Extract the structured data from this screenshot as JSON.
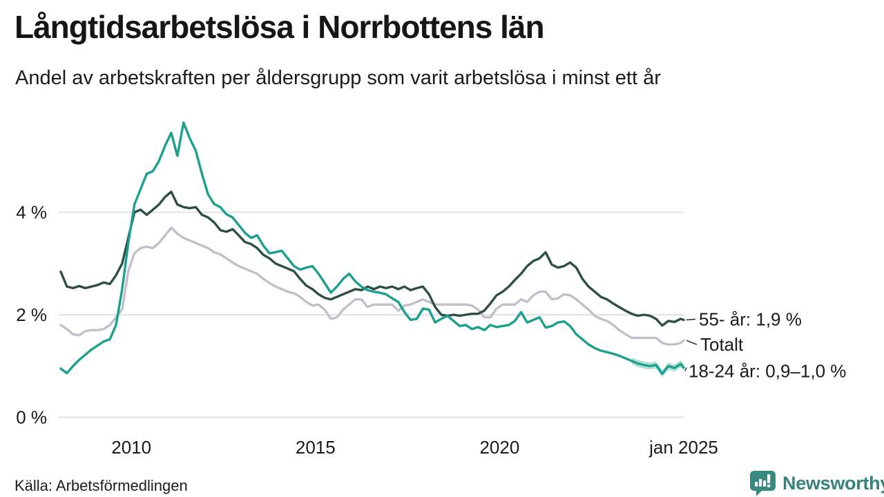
{
  "header": {
    "title": "Långtidsarbetslösa i Norrbottens län",
    "subtitle": "Andel av arbetskraften per åldersgrupp som varit arbetslösa i minst ett år"
  },
  "footer": {
    "source": "Källa: Arbetsförmedlingen",
    "brand": "Newsworthy"
  },
  "colors": {
    "background": "#ffffff",
    "text": "#1a1a1a",
    "grid": "#e2e0e5",
    "leader": "#3a3a3a",
    "brand": "#35837a",
    "band_opacity": 0.32
  },
  "chart_data": {
    "type": "line",
    "title": "Långtidsarbetslösa i Norrbottens län",
    "subtitle": "Andel av arbetskraften per åldersgrupp som varit arbetslösa i minst ett år",
    "x_unit": "month (every 2nd month sampled)",
    "x_range": [
      "2008-02",
      "2025-01"
    ],
    "ylim": [
      0,
      6
    ],
    "grid": "horizontal",
    "legend_position": "right-annotations",
    "y_ticks": [
      {
        "value": 0,
        "label": "0 %"
      },
      {
        "value": 2,
        "label": "2 %"
      },
      {
        "value": 4,
        "label": "4 %"
      }
    ],
    "x_ticks": [
      {
        "date": "2010-01",
        "label": "2010"
      },
      {
        "date": "2015-01",
        "label": "2015"
      },
      {
        "date": "2020-01",
        "label": "2020"
      },
      {
        "date": "2025-01",
        "label": "jan 2025"
      }
    ],
    "dates": [
      "2008-02",
      "2008-04",
      "2008-06",
      "2008-08",
      "2008-10",
      "2008-12",
      "2009-02",
      "2009-04",
      "2009-06",
      "2009-08",
      "2009-10",
      "2009-12",
      "2010-02",
      "2010-04",
      "2010-06",
      "2010-08",
      "2010-10",
      "2010-12",
      "2011-02",
      "2011-04",
      "2011-06",
      "2011-08",
      "2011-10",
      "2011-12",
      "2012-02",
      "2012-04",
      "2012-06",
      "2012-08",
      "2012-10",
      "2012-12",
      "2013-02",
      "2013-04",
      "2013-06",
      "2013-08",
      "2013-10",
      "2013-12",
      "2014-02",
      "2014-04",
      "2014-06",
      "2014-08",
      "2014-10",
      "2014-12",
      "2015-02",
      "2015-04",
      "2015-06",
      "2015-08",
      "2015-10",
      "2015-12",
      "2016-02",
      "2016-04",
      "2016-06",
      "2016-08",
      "2016-10",
      "2016-12",
      "2017-02",
      "2017-04",
      "2017-06",
      "2017-08",
      "2017-10",
      "2017-12",
      "2018-02",
      "2018-04",
      "2018-06",
      "2018-08",
      "2018-10",
      "2018-12",
      "2019-02",
      "2019-04",
      "2019-06",
      "2019-08",
      "2019-10",
      "2019-12",
      "2020-02",
      "2020-04",
      "2020-06",
      "2020-08",
      "2020-10",
      "2020-12",
      "2021-02",
      "2021-04",
      "2021-06",
      "2021-08",
      "2021-10",
      "2021-12",
      "2022-02",
      "2022-04",
      "2022-06",
      "2022-08",
      "2022-10",
      "2022-12",
      "2023-02",
      "2023-04",
      "2023-06",
      "2023-08",
      "2023-10",
      "2023-12",
      "2024-02",
      "2024-04",
      "2024-06",
      "2024-08",
      "2024-10",
      "2024-12",
      "2025-01"
    ],
    "series": [
      {
        "name": "55- år",
        "label": "55- år: 1,9 %",
        "color": "#2c4f42",
        "values": [
          2.84,
          2.55,
          2.52,
          2.56,
          2.52,
          2.55,
          2.58,
          2.63,
          2.6,
          2.77,
          3.0,
          3.5,
          4.0,
          4.05,
          3.95,
          4.05,
          4.15,
          4.3,
          4.4,
          4.15,
          4.1,
          4.08,
          4.1,
          3.95,
          3.9,
          3.8,
          3.65,
          3.62,
          3.67,
          3.55,
          3.42,
          3.38,
          3.3,
          3.17,
          3.1,
          3.0,
          2.95,
          2.9,
          2.85,
          2.7,
          2.57,
          2.5,
          2.4,
          2.33,
          2.3,
          2.35,
          2.4,
          2.45,
          2.5,
          2.48,
          2.55,
          2.5,
          2.55,
          2.52,
          2.55,
          2.5,
          2.55,
          2.48,
          2.52,
          2.55,
          2.4,
          2.15,
          2.0,
          1.98,
          2.0,
          1.98,
          2.0,
          2.02,
          2.02,
          2.08,
          2.22,
          2.38,
          2.45,
          2.55,
          2.68,
          2.8,
          2.95,
          3.05,
          3.1,
          3.22,
          2.98,
          2.92,
          2.95,
          3.02,
          2.92,
          2.7,
          2.55,
          2.45,
          2.35,
          2.3,
          2.22,
          2.15,
          2.08,
          2.02,
          1.98,
          2.0,
          1.98,
          1.92,
          1.79,
          1.88,
          1.86,
          1.92,
          1.9
        ]
      },
      {
        "name": "Totalt",
        "label": "Totalt",
        "color": "#c2bfca",
        "values": [
          1.8,
          1.72,
          1.62,
          1.6,
          1.68,
          1.7,
          1.7,
          1.72,
          1.8,
          1.95,
          2.1,
          2.85,
          3.2,
          3.3,
          3.33,
          3.3,
          3.4,
          3.55,
          3.7,
          3.58,
          3.5,
          3.45,
          3.4,
          3.35,
          3.3,
          3.22,
          3.18,
          3.1,
          3.02,
          2.95,
          2.9,
          2.85,
          2.8,
          2.7,
          2.62,
          2.55,
          2.5,
          2.45,
          2.42,
          2.35,
          2.25,
          2.18,
          2.2,
          2.1,
          1.92,
          1.95,
          2.1,
          2.2,
          2.3,
          2.3,
          2.15,
          2.2,
          2.2,
          2.2,
          2.2,
          2.08,
          2.18,
          2.2,
          2.25,
          2.3,
          2.25,
          2.2,
          2.2,
          2.2,
          2.2,
          2.2,
          2.2,
          2.18,
          2.1,
          1.95,
          1.95,
          2.12,
          2.2,
          2.2,
          2.2,
          2.3,
          2.25,
          2.38,
          2.45,
          2.45,
          2.3,
          2.32,
          2.4,
          2.38,
          2.3,
          2.2,
          2.1,
          1.98,
          1.92,
          1.88,
          1.8,
          1.7,
          1.62,
          1.55,
          1.55,
          1.55,
          1.55,
          1.55,
          1.45,
          1.42,
          1.42,
          1.45,
          1.5
        ]
      },
      {
        "name": "18-24 år",
        "label": "18-24 år: 0,9–1,0 %",
        "color": "#1aa08c",
        "band": {
          "start_date": "2023-08",
          "half_width": 0.07
        },
        "values": [
          0.95,
          0.86,
          1.0,
          1.12,
          1.22,
          1.32,
          1.4,
          1.48,
          1.52,
          1.8,
          2.5,
          3.4,
          4.15,
          4.45,
          4.75,
          4.8,
          5.0,
          5.3,
          5.55,
          5.1,
          5.75,
          5.45,
          5.2,
          4.75,
          4.35,
          4.16,
          4.1,
          3.96,
          3.9,
          3.75,
          3.6,
          3.5,
          3.55,
          3.35,
          3.2,
          3.22,
          3.25,
          3.1,
          2.95,
          2.88,
          2.92,
          2.95,
          2.8,
          2.62,
          2.43,
          2.55,
          2.7,
          2.8,
          2.65,
          2.55,
          2.48,
          2.45,
          2.43,
          2.4,
          2.32,
          2.25,
          2.05,
          1.9,
          1.92,
          2.12,
          2.1,
          1.85,
          1.92,
          1.98,
          1.88,
          1.78,
          1.8,
          1.72,
          1.76,
          1.7,
          1.8,
          1.76,
          1.78,
          1.8,
          1.88,
          2.05,
          1.85,
          1.9,
          1.95,
          1.75,
          1.78,
          1.85,
          1.87,
          1.78,
          1.62,
          1.52,
          1.42,
          1.35,
          1.3,
          1.27,
          1.24,
          1.2,
          1.15,
          1.1,
          1.05,
          1.02,
          1.0,
          1.02,
          0.85,
          1.0,
          0.96,
          1.04,
          0.97
        ]
      }
    ]
  }
}
